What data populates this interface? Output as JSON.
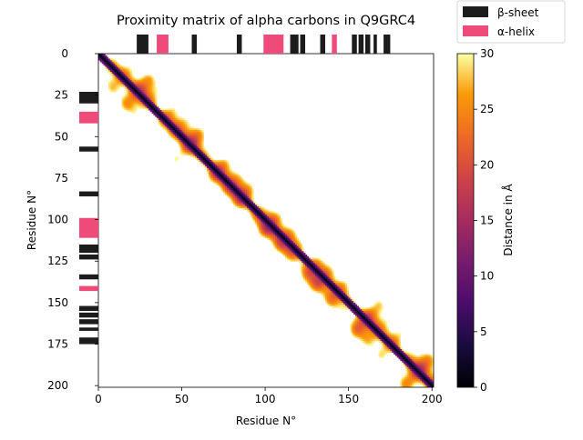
{
  "chart_data": {
    "type": "heatmap",
    "title": "Proximity matrix of alpha carbons in Q9GRC4",
    "xlabel": "Residue N°",
    "ylabel": "Residue N°",
    "xlim": [
      0,
      201
    ],
    "ylim": [
      0,
      201
    ],
    "x_ticks": [
      "0",
      "50",
      "100",
      "150",
      "200"
    ],
    "y_ticks": [
      "0",
      "25",
      "50",
      "75",
      "100",
      "125",
      "150",
      "175",
      "200"
    ],
    "colormap": "inferno",
    "colorbar": {
      "label": "Distance in Å",
      "range": [
        0,
        30
      ],
      "ticks": [
        "0",
        "5",
        "10",
        "15",
        "20",
        "25",
        "30"
      ]
    },
    "legend": {
      "position": "top-right",
      "entries": [
        {
          "label": "β-sheet",
          "color": "#1c1c1c"
        },
        {
          "label": "α-helix",
          "color": "#ee4a7a"
        }
      ]
    },
    "secondary_structure": [
      {
        "type": "sheet",
        "start": 23,
        "end": 30
      },
      {
        "type": "helix",
        "start": 35,
        "end": 42
      },
      {
        "type": "sheet",
        "start": 56,
        "end": 59
      },
      {
        "type": "sheet",
        "start": 83,
        "end": 86
      },
      {
        "type": "helix",
        "start": 99,
        "end": 111
      },
      {
        "type": "sheet",
        "start": 115,
        "end": 120
      },
      {
        "type": "sheet",
        "start": 121,
        "end": 124
      },
      {
        "type": "sheet",
        "start": 133,
        "end": 136
      },
      {
        "type": "helix",
        "start": 140,
        "end": 143
      },
      {
        "type": "sheet",
        "start": 152,
        "end": 155
      },
      {
        "type": "sheet",
        "start": 156,
        "end": 159
      },
      {
        "type": "sheet",
        "start": 160,
        "end": 163
      },
      {
        "type": "sheet",
        "start": 165,
        "end": 167
      },
      {
        "type": "sheet",
        "start": 171,
        "end": 175
      }
    ],
    "note_distance": "pairwise C-alpha distances; white cells beyond 30 Å"
  }
}
